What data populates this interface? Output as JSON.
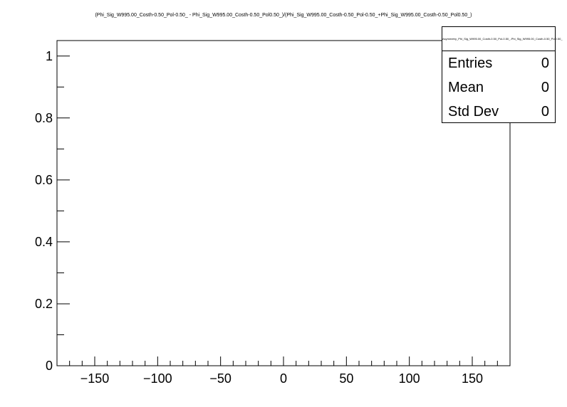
{
  "chart_data": {
    "type": "histogram",
    "title": "(Phi_Sig_W995.00_Costh-0.50_Pol-0.50_ - Phi_Sig_W995.00_Costh-0.50_Pol0.50_)/(Phi_Sig_W995.00_Costh-0.50_Pol-0.50_+Phi_Sig_W995.00_Costh-0.50_Pol0.50_)",
    "xlabel": "",
    "ylabel": "",
    "xlim": [
      -180,
      180
    ],
    "ylim": [
      0,
      1.05
    ],
    "x_ticks": [
      -150,
      -100,
      -50,
      0,
      50,
      100,
      150
    ],
    "x_tick_labels": [
      "−150",
      "−100",
      "−50",
      "0",
      "50",
      "100",
      "150"
    ],
    "y_ticks": [
      0,
      0.2,
      0.4,
      0.6,
      0.8,
      1
    ],
    "y_tick_labels": [
      "0",
      "0.2",
      "0.4",
      "0.6",
      "0.8",
      "1"
    ],
    "series": [],
    "grid": false,
    "legend": "none"
  },
  "stats_box": {
    "title": "Asymmetry_Phi_Sig_W995.00_Costh-0.50_Pol-0.50_-Phi_Sig_W995.00_Costh-0.50_Pol0.50_",
    "rows": [
      {
        "label": "Entries",
        "value": "0"
      },
      {
        "label": "Mean",
        "value": "0"
      },
      {
        "label": "Std Dev",
        "value": "0"
      }
    ]
  }
}
